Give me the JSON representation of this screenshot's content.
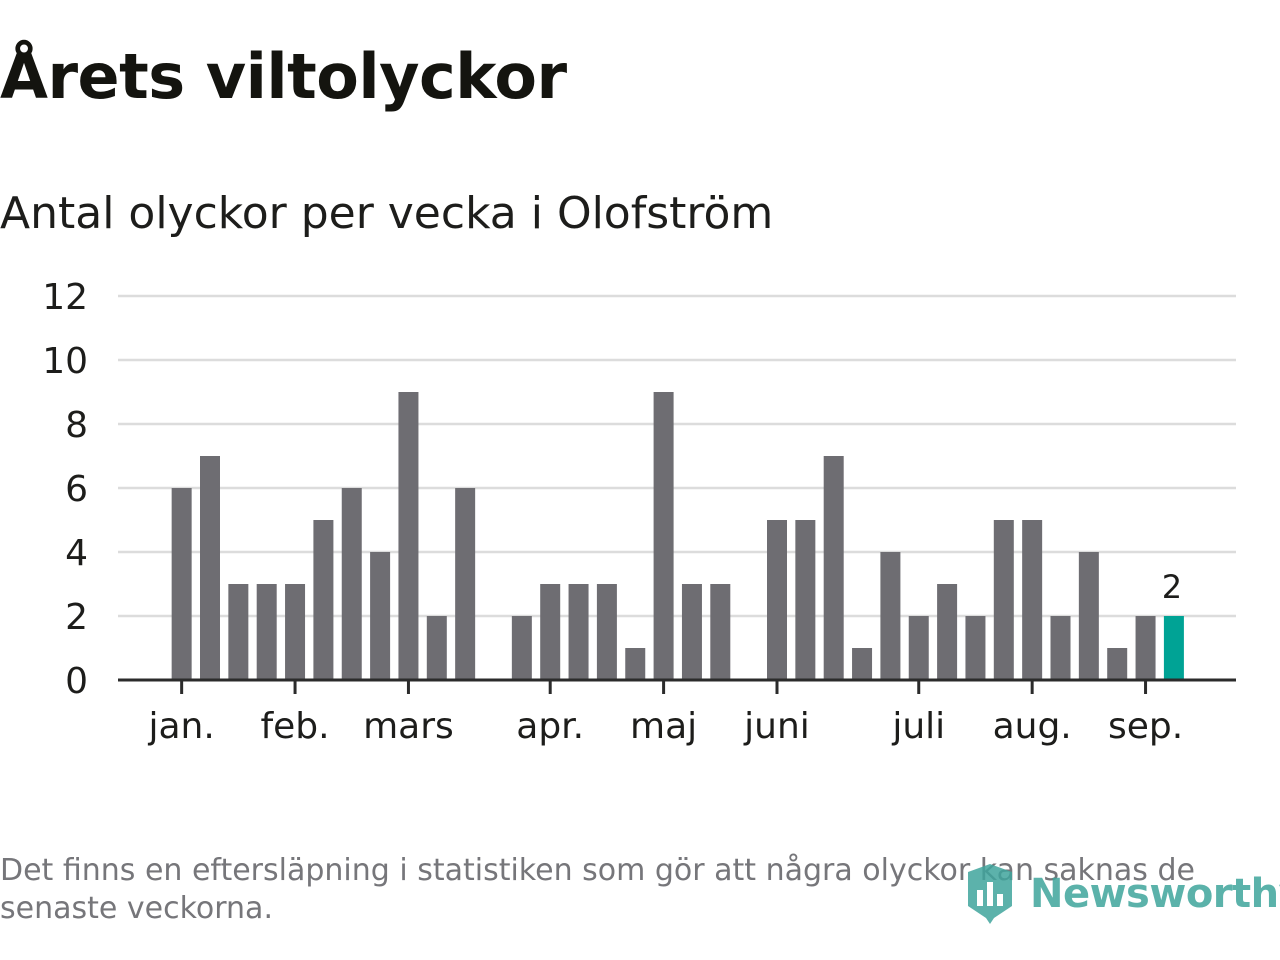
{
  "title": "Årets viltolyckor",
  "subtitle": "Antal olyckor per vecka i Olofström",
  "footnote": "Det finns en eftersläpning i statistiken som gör att några olyckor kan saknas de senaste veckorna.",
  "brand": "Newsworthy",
  "colors": {
    "bar": "#6e6d72",
    "highlight": "#00a395",
    "grid": "#dcdcdc",
    "axis": "#2b2b2b",
    "text": "#1d1d1b",
    "note": "#76767a",
    "brand": "#3fa59c"
  },
  "chart_data": {
    "type": "bar",
    "y_ticks": [
      0,
      2,
      4,
      6,
      8,
      10,
      12
    ],
    "ylim": [
      0,
      12
    ],
    "grid": true,
    "week_range": [
      1,
      39
    ],
    "month_labels": [
      {
        "label": "jan.",
        "week": 2
      },
      {
        "label": "feb.",
        "week": 6
      },
      {
        "label": "mars",
        "week": 10
      },
      {
        "label": "apr.",
        "week": 15
      },
      {
        "label": "maj",
        "week": 19
      },
      {
        "label": "juni",
        "week": 23
      },
      {
        "label": "juli",
        "week": 28
      },
      {
        "label": "aug.",
        "week": 32
      },
      {
        "label": "sep.",
        "week": 36
      }
    ],
    "weeks": [
      1,
      2,
      3,
      4,
      5,
      6,
      7,
      8,
      9,
      10,
      11,
      12,
      13,
      14,
      15,
      16,
      17,
      18,
      19,
      20,
      21,
      22,
      23,
      24,
      25,
      26,
      27,
      28,
      29,
      30,
      31,
      32,
      33,
      34,
      35,
      36,
      37,
      38,
      39
    ],
    "values": [
      0,
      6,
      7,
      3,
      3,
      3,
      5,
      6,
      4,
      9,
      2,
      6,
      0,
      2,
      3,
      3,
      3,
      1,
      9,
      3,
      3,
      0,
      5,
      5,
      7,
      1,
      4,
      2,
      3,
      2,
      5,
      5,
      2,
      4,
      1,
      2,
      2,
      0,
      0
    ],
    "highlight_week": 37,
    "highlight_label": "2"
  }
}
